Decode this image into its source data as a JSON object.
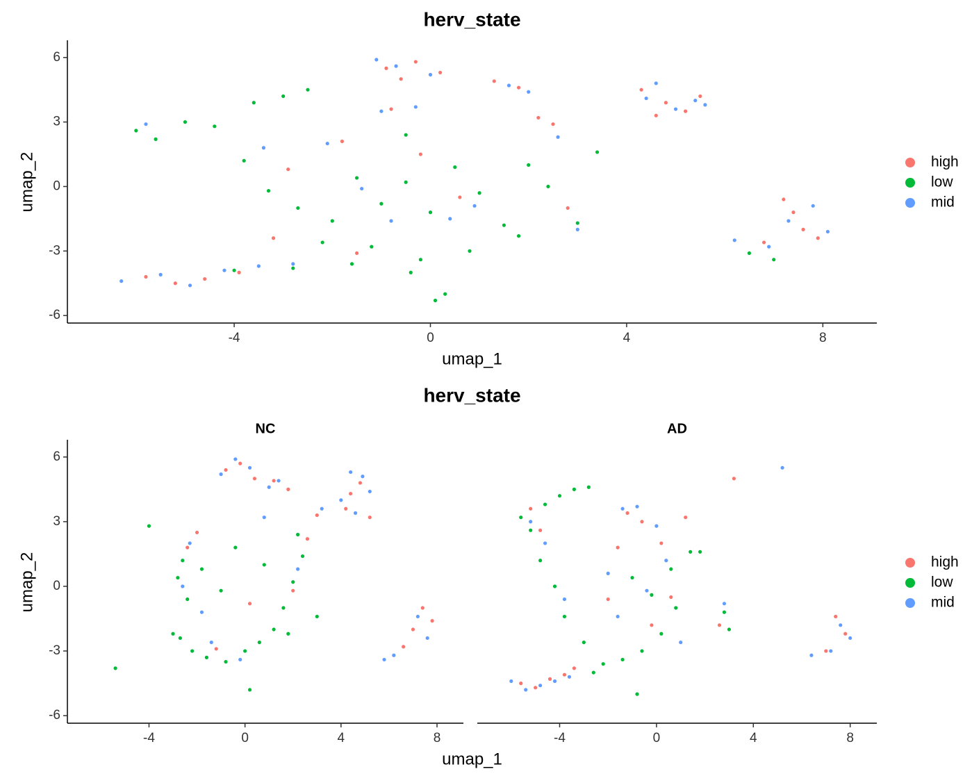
{
  "chart_data": [
    {
      "type": "scatter",
      "title": "herv_state",
      "xlabel": "umap_1",
      "ylabel": "umap_2",
      "xlim": [
        -7.4,
        9.1
      ],
      "ylim": [
        -6.35,
        6.8
      ],
      "xticks": [
        -4,
        0,
        4,
        8
      ],
      "yticks": [
        -6,
        -3,
        0,
        3,
        6
      ],
      "legend": [
        {
          "name": "high",
          "color": "#F8766D"
        },
        {
          "name": "low",
          "color": "#00BA38"
        },
        {
          "name": "mid",
          "color": "#619CFF"
        }
      ],
      "panels": [
        {
          "series": [
            {
              "x": [
                -5.8,
                -5.2,
                -4.6,
                -3.9,
                -0.9,
                -0.3,
                0.2,
                -0.6,
                1.3,
                1.8,
                2.2,
                2.5,
                4.3,
                4.8,
                5.2,
                4.6,
                5.5,
                7.4,
                7.2,
                7.6,
                6.8,
                -1.8,
                -0.8,
                0.6,
                -3.2,
                -1.5,
                2.8,
                -2.9,
                7.9,
                -0.2
              ],
              "y": [
                -4.2,
                -4.5,
                -4.3,
                -4.0,
                5.5,
                5.8,
                5.3,
                5.0,
                4.9,
                4.6,
                3.2,
                2.9,
                4.5,
                3.9,
                3.5,
                3.3,
                4.2,
                -1.2,
                -0.6,
                -2.0,
                -2.6,
                2.1,
                3.6,
                -0.5,
                -2.4,
                -3.1,
                -1.0,
                0.8,
                -2.4,
                1.5
              ]
            },
            {
              "x": [
                -6.0,
                -5.6,
                -5.0,
                -4.4,
                -3.6,
                -3.0,
                -2.5,
                -3.8,
                -3.3,
                -2.7,
                -2.0,
                -1.5,
                -1.0,
                -0.5,
                0.0,
                0.5,
                1.0,
                1.5,
                2.0,
                2.4,
                -1.2,
                -0.2,
                0.8,
                -2.2,
                -1.6,
                -0.4,
                0.3,
                1.8,
                3.0,
                3.4,
                -4.0,
                -2.8,
                6.5,
                7.0,
                0.1,
                -0.5
              ],
              "y": [
                2.6,
                2.2,
                3.0,
                2.8,
                3.9,
                4.2,
                4.5,
                1.2,
                -0.2,
                -1.0,
                -1.6,
                0.4,
                -0.8,
                0.2,
                -1.2,
                0.9,
                -0.3,
                -1.8,
                1.0,
                0.0,
                -2.8,
                -3.4,
                -3.0,
                -2.6,
                -3.6,
                -4.0,
                -5.0,
                -2.3,
                -1.7,
                1.6,
                -3.9,
                -3.8,
                -3.1,
                -3.4,
                -5.3,
                2.4
              ]
            },
            {
              "x": [
                -6.3,
                -5.5,
                -4.9,
                -4.2,
                -3.5,
                -2.8,
                -0.7,
                0.0,
                -1.1,
                1.6,
                2.0,
                4.6,
                5.0,
                5.4,
                4.4,
                5.6,
                7.3,
                7.8,
                8.1,
                6.9,
                6.2,
                -1.0,
                -0.3,
                0.4,
                -2.1,
                -3.4,
                -1.4,
                0.9,
                2.6,
                3.0,
                -5.8,
                -0.8
              ],
              "y": [
                -4.4,
                -4.1,
                -4.6,
                -3.9,
                -3.7,
                -3.6,
                5.6,
                5.2,
                5.9,
                4.7,
                4.4,
                4.8,
                3.6,
                4.0,
                4.1,
                3.8,
                -1.6,
                -0.9,
                -2.1,
                -2.8,
                -2.5,
                3.5,
                3.7,
                -1.5,
                2.0,
                1.8,
                -0.1,
                -0.9,
                2.3,
                -2.0,
                2.9,
                -1.6
              ]
            }
          ]
        }
      ]
    },
    {
      "type": "scatter",
      "title": "herv_state",
      "xlabel": "umap_1",
      "ylabel": "umap_2",
      "xlim": [
        -7.4,
        9.1
      ],
      "ylim": [
        -6.35,
        6.8
      ],
      "xticks": [
        -4,
        0,
        4,
        8
      ],
      "yticks": [
        -6,
        -3,
        0,
        3,
        6
      ],
      "legend": [
        {
          "name": "high",
          "color": "#F8766D"
        },
        {
          "name": "low",
          "color": "#00BA38"
        },
        {
          "name": "mid",
          "color": "#619CFF"
        }
      ],
      "panels": [
        {
          "label": "NC",
          "series": [
            {
              "x": [
                -0.8,
                -0.2,
                0.4,
                1.2,
                1.8,
                4.2,
                4.8,
                5.2,
                4.4,
                3.0,
                2.6,
                -2.0,
                -2.4,
                7.4,
                7.0,
                6.6,
                0.2,
                -1.2,
                2.0,
                7.8
              ],
              "y": [
                5.4,
                5.7,
                5.0,
                4.9,
                4.5,
                3.6,
                4.8,
                3.2,
                4.3,
                3.3,
                2.2,
                2.5,
                1.8,
                -1.0,
                -2.0,
                -2.8,
                -0.8,
                -2.9,
                -0.2,
                -1.6
              ]
            },
            {
              "x": [
                -2.6,
                -2.8,
                -2.4,
                -2.7,
                -2.2,
                -1.6,
                -0.8,
                0.0,
                0.6,
                1.2,
                1.6,
                2.0,
                2.4,
                2.2,
                1.8,
                3.0,
                -3.0,
                -1.0,
                -0.4,
                0.8,
                -4.0,
                -5.4,
                0.2,
                -1.8
              ],
              "y": [
                1.2,
                0.4,
                -0.6,
                -2.4,
                -3.0,
                -3.3,
                -3.5,
                -3.0,
                -2.6,
                -2.0,
                -1.0,
                0.2,
                1.4,
                2.4,
                -2.2,
                -1.4,
                -2.2,
                -0.2,
                1.8,
                1.0,
                2.8,
                -3.8,
                -4.8,
                0.8
              ]
            },
            {
              "x": [
                -1.0,
                -0.4,
                0.2,
                1.0,
                1.4,
                4.0,
                4.6,
                5.2,
                4.9,
                3.2,
                -2.3,
                -2.6,
                -1.4,
                -0.2,
                2.2,
                7.2,
                7.6,
                6.2,
                5.8,
                0.8,
                -1.8,
                4.4
              ],
              "y": [
                5.2,
                5.9,
                5.5,
                4.6,
                4.9,
                4.0,
                3.4,
                4.4,
                5.1,
                3.6,
                2.0,
                0.0,
                -2.6,
                -3.4,
                0.8,
                -1.4,
                -2.4,
                -3.2,
                -3.4,
                3.2,
                -1.2,
                5.3
              ]
            }
          ]
        },
        {
          "label": "AD",
          "series": [
            {
              "x": [
                -5.6,
                -5.0,
                -4.4,
                -3.8,
                -1.2,
                -0.6,
                0.2,
                -1.6,
                0.6,
                -2.0,
                2.6,
                7.8,
                7.4,
                7.0,
                -4.8,
                -0.2,
                1.2,
                -3.4,
                -5.2,
                3.2
              ],
              "y": [
                -4.5,
                -4.7,
                -4.3,
                -4.1,
                3.4,
                3.0,
                2.0,
                1.8,
                -0.5,
                -0.6,
                -1.8,
                -2.2,
                -1.4,
                -3.0,
                2.6,
                -1.8,
                3.2,
                -3.8,
                3.6,
                5.0
              ]
            },
            {
              "x": [
                -5.6,
                -5.2,
                -4.6,
                -4.0,
                -3.4,
                -2.8,
                -4.8,
                -4.2,
                -3.8,
                -3.0,
                -2.2,
                -1.4,
                -0.6,
                0.2,
                0.8,
                1.4,
                -1.0,
                -0.2,
                0.6,
                2.8,
                3.0,
                -2.6,
                -0.8,
                1.8
              ],
              "y": [
                3.2,
                2.6,
                3.8,
                4.2,
                4.5,
                4.6,
                1.2,
                0.0,
                -1.4,
                -2.6,
                -3.6,
                -3.4,
                -3.0,
                -2.2,
                -1.0,
                1.6,
                0.4,
                -0.4,
                0.8,
                -1.2,
                -2.0,
                -4.0,
                -5.0,
                1.6
              ]
            },
            {
              "x": [
                -6.0,
                -5.4,
                -4.8,
                -4.2,
                -3.6,
                -1.4,
                -0.8,
                0.0,
                -2.0,
                -1.6,
                0.4,
                2.8,
                7.6,
                8.0,
                7.2,
                6.4,
                -4.6,
                -3.8,
                -0.4,
                1.0,
                5.2,
                -5.2
              ],
              "y": [
                -4.4,
                -4.8,
                -4.6,
                -4.4,
                -4.2,
                3.6,
                3.7,
                2.8,
                0.6,
                -1.4,
                1.2,
                -0.8,
                -1.8,
                -2.4,
                -3.0,
                -3.2,
                2.0,
                -0.6,
                -0.2,
                -2.6,
                5.5,
                3.0
              ]
            }
          ]
        }
      ]
    }
  ]
}
